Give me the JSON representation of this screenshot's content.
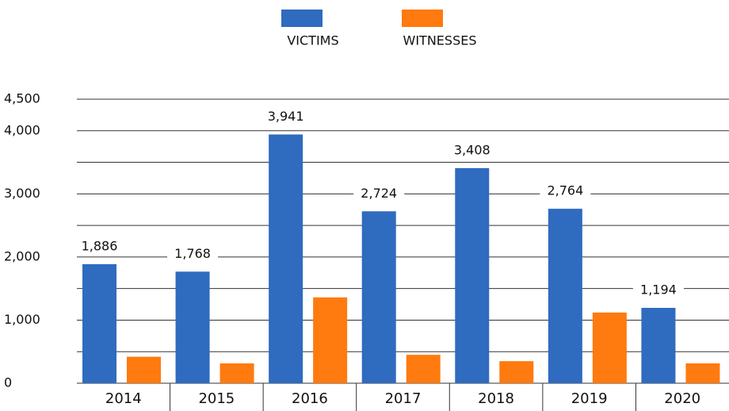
{
  "chart_data": {
    "type": "bar",
    "categories": [
      "2014",
      "2015",
      "2016",
      "2017",
      "2018",
      "2019",
      "2020"
    ],
    "series": [
      {
        "name": "VICTIMS",
        "color": "#2f6bbf",
        "values": [
          1886,
          1768,
          3941,
          2724,
          3408,
          2764,
          1194
        ],
        "value_labels": [
          "1,886",
          "1,768",
          "3,941",
          "2,724",
          "3,408",
          "2,764",
          "1,194"
        ]
      },
      {
        "name": "WITNESSES",
        "color": "#ff7a0f",
        "values": [
          420,
          315,
          1360,
          450,
          350,
          1120,
          315
        ]
      }
    ],
    "ylim": [
      0,
      4500
    ],
    "yticks": [
      0,
      {
        "value": 1000,
        "label": "1,000"
      },
      {
        "value": 2000,
        "label": "2,000"
      },
      {
        "value": 3000,
        "label": "3,000"
      },
      {
        "value": 4000,
        "label": "4,000"
      },
      {
        "value": 4500,
        "label": "4,500"
      }
    ],
    "minor_yticks": [
      500,
      1500,
      2500,
      3500
    ],
    "grid": true,
    "legend": "top"
  }
}
